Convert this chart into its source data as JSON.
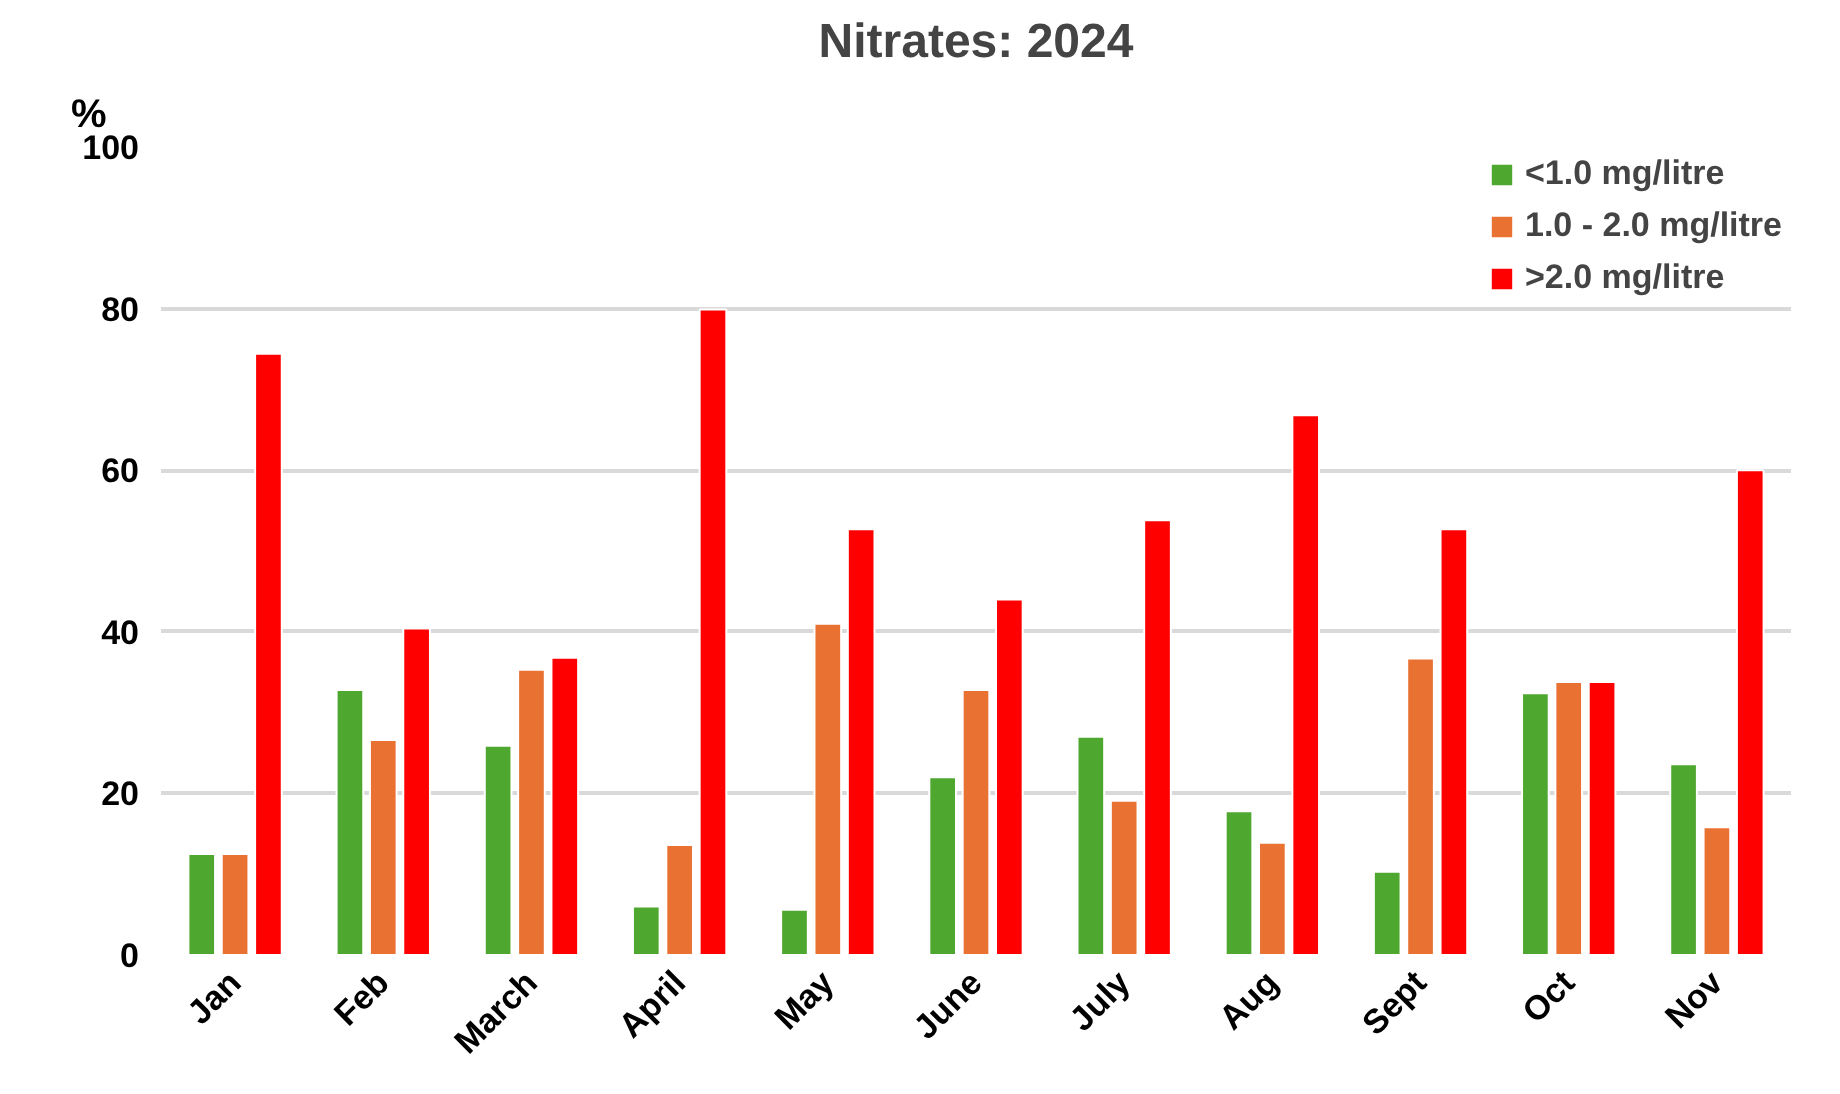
{
  "chart_data": {
    "type": "bar",
    "title": "Nitrates: 2024",
    "ylabel": "%",
    "categories": [
      "Jan",
      "Feb",
      "March",
      "April",
      "May",
      "June",
      "July",
      "Aug",
      "Sept",
      "Oct",
      "Nov"
    ],
    "series": [
      {
        "name": "<1.0 mg/litre",
        "color": "#4ea72e",
        "values": [
          12.5,
          32.8,
          25.9,
          6.0,
          5.6,
          22.0,
          27.0,
          17.8,
          10.3,
          32.4,
          23.6
        ]
      },
      {
        "name": "1.0 - 2.0 mg/litre",
        "color": "#e97132",
        "values": [
          12.5,
          26.6,
          35.3,
          13.6,
          41.0,
          32.8,
          19.1,
          13.9,
          36.7,
          33.8,
          15.8
        ]
      },
      {
        "name": ">2.0 mg/litre",
        "color": "#ff0000",
        "values": [
          74.4,
          40.4,
          36.8,
          79.9,
          52.7,
          44.0,
          53.8,
          66.8,
          52.7,
          33.8,
          60.0
        ]
      }
    ],
    "ylim": [
      0,
      100
    ],
    "yticks": [
      0,
      20,
      40,
      60,
      80,
      100
    ],
    "grid": "y",
    "legend": "top right"
  }
}
